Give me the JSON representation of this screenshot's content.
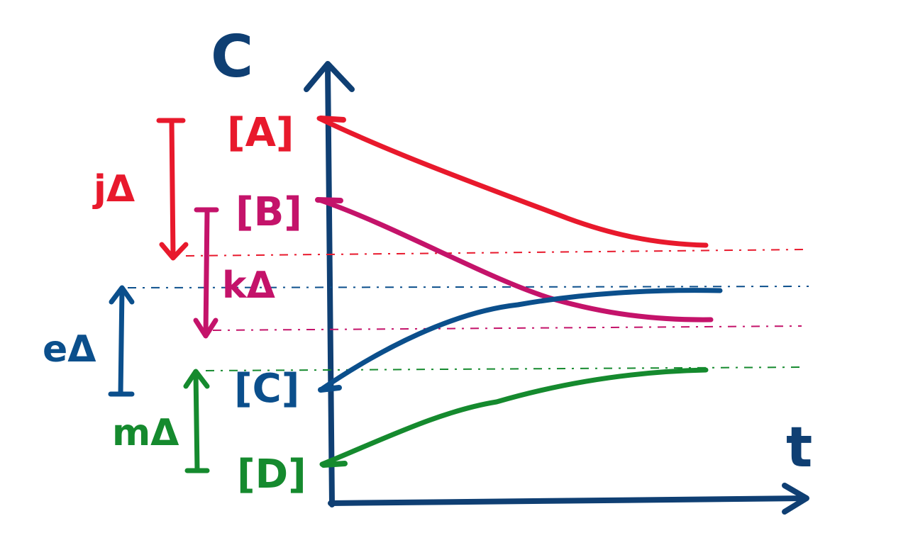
{
  "axes": {
    "y_label": "C",
    "x_label": "t",
    "axis_color": "#0f3f73"
  },
  "species": [
    {
      "key": "A",
      "label": "[A]",
      "color": "#e8192c",
      "trend": "decreasing"
    },
    {
      "key": "B",
      "label": "[B]",
      "color": "#c4136a",
      "trend": "decreasing"
    },
    {
      "key": "C",
      "label": "[C]",
      "color": "#0b4f8c",
      "trend": "increasing"
    },
    {
      "key": "D",
      "label": "[D]",
      "color": "#158a2e",
      "trend": "increasing"
    }
  ],
  "changes": [
    {
      "key": "A",
      "label": "jΔ",
      "direction": "down",
      "color": "#e8192c"
    },
    {
      "key": "B",
      "label": "kΔ",
      "direction": "down",
      "color": "#c4136a"
    },
    {
      "key": "C",
      "label": "eΔ",
      "direction": "up",
      "color": "#0b4f8c"
    },
    {
      "key": "D",
      "label": "mΔ",
      "direction": "up",
      "color": "#158a2e"
    }
  ]
}
